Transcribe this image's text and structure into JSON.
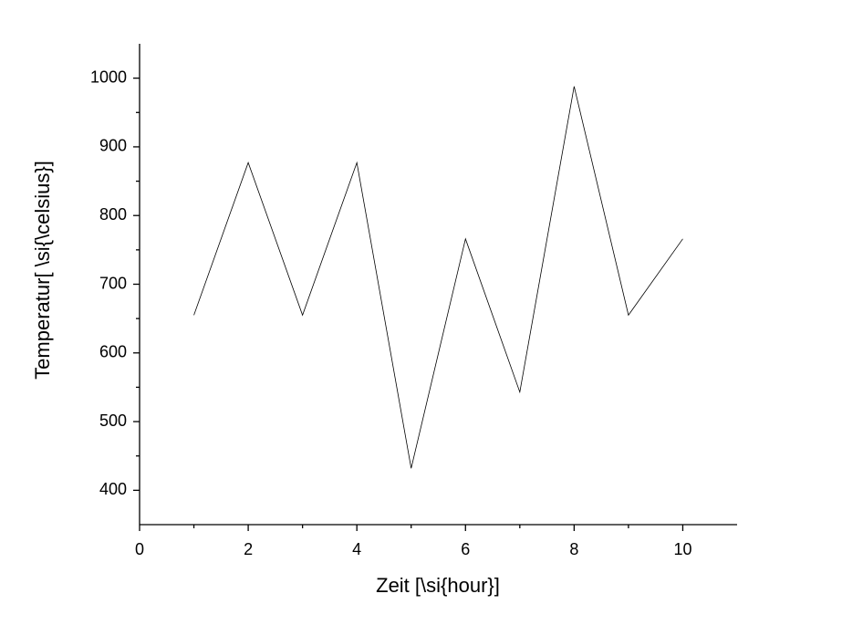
{
  "chart_data": {
    "type": "line",
    "x_label": "Zeit [\\si{hour}]",
    "y_label": "Temperatur[ \\si{\\celsius}]",
    "x": [
      1,
      2,
      3,
      4,
      5,
      6,
      7,
      8,
      9,
      10
    ],
    "series": [
      {
        "color": "#000000",
        "values": [
          655,
          877,
          655,
          877,
          432,
          766,
          543,
          988,
          655,
          766
        ]
      }
    ],
    "xlim": [
      0,
      11
    ],
    "xticks": [
      0,
      2,
      4,
      6,
      8,
      10
    ],
    "ylim": [
      350,
      1050
    ],
    "yticks": [
      400,
      500,
      600,
      700,
      800,
      900,
      1000
    ],
    "grid": false
  }
}
